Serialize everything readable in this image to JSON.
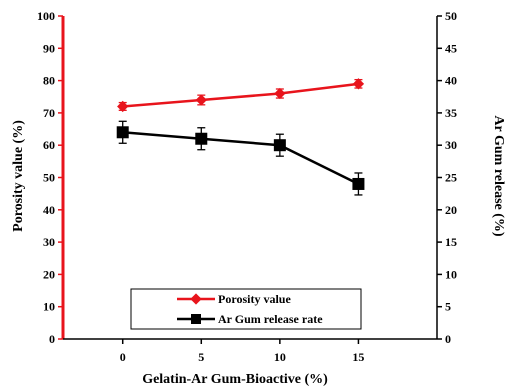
{
  "chart_data": {
    "type": "line",
    "x": [
      0,
      5,
      10,
      15
    ],
    "x_tick_labels": [
      "0",
      "5",
      "10",
      "15"
    ],
    "xlabel": "Gelatin-Ar Gum-Bioactive (%)",
    "ylabel_left": "Porosity value (%)",
    "ylabel_right": "Ar Gum release (%)",
    "ylim_left": [
      0,
      100
    ],
    "ylim_right": [
      0,
      50
    ],
    "y_ticks_left": [
      "0",
      "10",
      "20",
      "30",
      "40",
      "50",
      "60",
      "70",
      "80",
      "90",
      "100"
    ],
    "y_ticks_right": [
      "0",
      "5",
      "10",
      "15",
      "20",
      "25",
      "30",
      "35",
      "40",
      "45",
      "50"
    ],
    "grid": false,
    "legend_placement": "bottom-center",
    "series": [
      {
        "name": "Porosity value",
        "axis": "left",
        "marker": "diamond",
        "color": "#e8141c",
        "values": [
          72,
          74,
          76,
          79
        ],
        "errors": [
          1.2,
          1.5,
          1.4,
          1.3
        ]
      },
      {
        "name": "Ar Gum release rate",
        "axis": "right",
        "marker": "square",
        "color": "#000000",
        "values": [
          32,
          31,
          30,
          24
        ],
        "errors": [
          1.7,
          1.7,
          1.7,
          1.7
        ]
      }
    ]
  }
}
